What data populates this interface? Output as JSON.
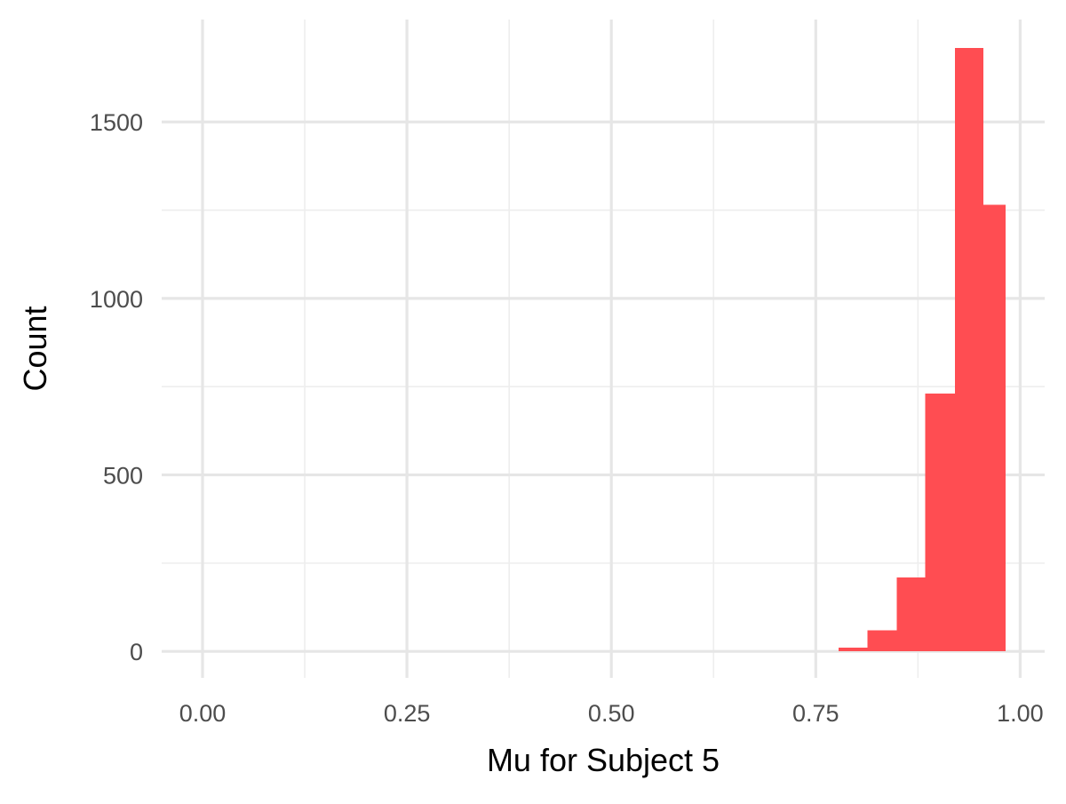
{
  "chart_data": {
    "type": "bar",
    "subtype": "histogram",
    "xlabel": "Mu for Subject 5",
    "ylabel": "Count",
    "xlim": [
      -0.05,
      1.03
    ],
    "ylim": [
      -75,
      1790
    ],
    "x_ticks": [
      0.0,
      0.25,
      0.5,
      0.75,
      1.0
    ],
    "x_tick_labels": [
      "0.00",
      "0.25",
      "0.50",
      "0.75",
      "1.00"
    ],
    "y_ticks": [
      0,
      500,
      1000,
      1500
    ],
    "y_tick_labels": [
      "0",
      "500",
      "1000",
      "1500"
    ],
    "x_minor_ticks": [
      0.125,
      0.375,
      0.625,
      0.875
    ],
    "y_minor_ticks": [
      250,
      750,
      1250
    ],
    "grid": true,
    "legend": "none",
    "bars": [
      {
        "x0": 0.778,
        "x1": 0.813,
        "value": 10
      },
      {
        "x0": 0.813,
        "x1": 0.849,
        "value": 60
      },
      {
        "x0": 0.849,
        "x1": 0.884,
        "value": 210
      },
      {
        "x0": 0.884,
        "x1": 0.92,
        "value": 730
      },
      {
        "x0": 0.92,
        "x1": 0.955,
        "value": 1710
      },
      {
        "x0": 0.955,
        "x1": 0.982,
        "value": 1265
      }
    ],
    "colors": {
      "bar_fill": "#ff4d52",
      "grid_major": "#e6e6e6",
      "grid_minor": "#eeeeee",
      "tick_text": "#4d4d4d",
      "axis_title": "#000000",
      "background": "#ffffff"
    }
  }
}
